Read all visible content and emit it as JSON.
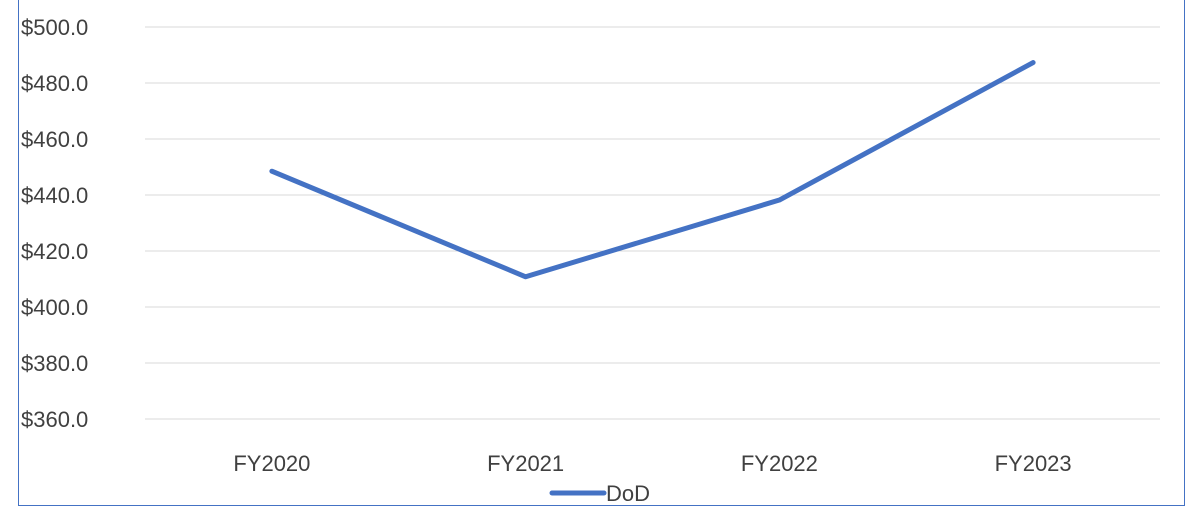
{
  "chart_data": {
    "type": "line",
    "title": "",
    "xlabel": "",
    "ylabel": "",
    "categories": [
      "FY2020",
      "FY2021",
      "FY2022",
      "FY2023"
    ],
    "series": [
      {
        "name": "DoD",
        "values": [
          448.5,
          410.8,
          438.2,
          487.3
        ],
        "color": "#4472C4"
      }
    ],
    "ylim": [
      360,
      500
    ],
    "ytick_step": 20,
    "y_tick_labels": [
      "$360.0",
      "$380.0",
      "$400.0",
      "$420.0",
      "$440.0",
      "$460.0",
      "$480.0",
      "$500.0"
    ],
    "grid": true,
    "legend_position": "bottom",
    "gridline_color": "#D9D9D9"
  }
}
